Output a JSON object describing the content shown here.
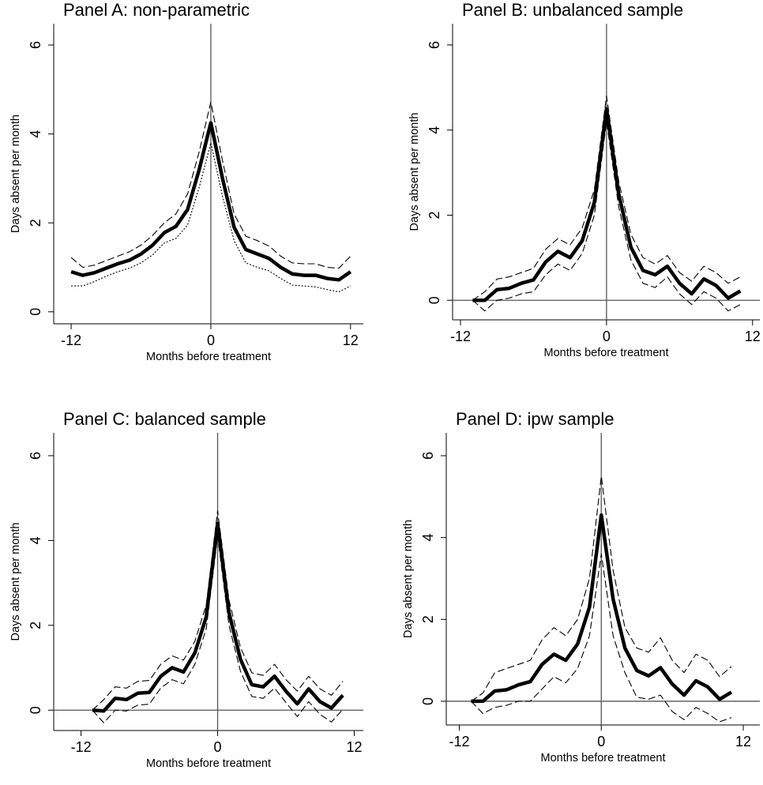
{
  "chart_data": [
    {
      "type": "line",
      "title": "Panel A: non-parametric",
      "x_label": "Months before treatment",
      "y_label": "Days absent per month",
      "x": [
        -12,
        -11,
        -10,
        -9,
        -8,
        -7,
        -6,
        -5,
        -4,
        -3,
        -2,
        -1,
        0,
        1,
        2,
        3,
        4,
        5,
        6,
        7,
        8,
        9,
        10,
        11,
        12
      ],
      "series": [
        {
          "color": "#000000",
          "style": "solid",
          "values": [
            0.9,
            0.82,
            0.88,
            0.98,
            1.08,
            1.16,
            1.3,
            1.5,
            1.78,
            1.92,
            2.3,
            3.2,
            4.25,
            3.0,
            1.9,
            1.4,
            1.3,
            1.2,
            1.0,
            0.85,
            0.82,
            0.82,
            0.75,
            0.72,
            0.9
          ]
        },
        {
          "color": "#000000",
          "style": "dashed",
          "values": [
            1.22,
            1.0,
            1.05,
            1.15,
            1.25,
            1.35,
            1.5,
            1.72,
            2.0,
            2.2,
            2.65,
            3.6,
            4.72,
            3.4,
            2.2,
            1.7,
            1.6,
            1.48,
            1.25,
            1.1,
            1.08,
            1.08,
            1.0,
            0.98,
            1.25
          ]
        },
        {
          "color": "#000000",
          "style": "dotted",
          "values": [
            0.58,
            0.58,
            0.68,
            0.8,
            0.9,
            0.98,
            1.1,
            1.28,
            1.55,
            1.65,
            1.95,
            2.8,
            3.8,
            2.6,
            1.6,
            1.1,
            1.0,
            0.92,
            0.75,
            0.6,
            0.58,
            0.56,
            0.5,
            0.45,
            0.58
          ]
        }
      ],
      "xlim": [
        -13.5,
        13.1
      ],
      "ylim": [
        -0.27,
        6.48
      ],
      "xticks": [
        -12,
        0,
        12
      ],
      "yticks": [
        0,
        2,
        4,
        6
      ],
      "zero_hline": false,
      "zero_vline": true
    },
    {
      "type": "line",
      "title": "Panel B: unbalanced sample",
      "x_label": "Months before treatment",
      "y_label": "Days absent per month",
      "x": [
        -11,
        -10,
        -9,
        -8,
        -7,
        -6,
        -5,
        -4,
        -3,
        -2,
        -1,
        0,
        1,
        2,
        3,
        4,
        5,
        6,
        7,
        8,
        9,
        10,
        11
      ],
      "series": [
        {
          "color": "#000000",
          "style": "solid",
          "values": [
            0,
            0,
            0.25,
            0.28,
            0.4,
            0.48,
            0.9,
            1.15,
            1.0,
            1.4,
            2.3,
            4.5,
            2.5,
            1.25,
            0.7,
            0.6,
            0.8,
            0.4,
            0.15,
            0.5,
            0.35,
            0.05,
            0.22
          ]
        },
        {
          "color": "#000000",
          "style": "dashed",
          "values": [
            0,
            0.2,
            0.5,
            0.55,
            0.65,
            0.75,
            1.2,
            1.45,
            1.3,
            1.7,
            2.6,
            4.8,
            2.8,
            1.55,
            1.0,
            0.85,
            1.05,
            0.65,
            0.45,
            0.8,
            0.65,
            0.4,
            0.55
          ]
        },
        {
          "color": "#000000",
          "style": "dashed",
          "values": [
            0,
            -0.25,
            0.0,
            0.05,
            0.15,
            0.2,
            0.6,
            0.85,
            0.7,
            1.1,
            2.0,
            4.2,
            2.2,
            0.95,
            0.4,
            0.3,
            0.55,
            0.15,
            -0.1,
            0.2,
            0.05,
            -0.25,
            -0.1
          ]
        }
      ],
      "xlim": [
        -12.65,
        12.6
      ],
      "ylim": [
        -0.46,
        6.5
      ],
      "xticks": [
        -12,
        0,
        12
      ],
      "yticks": [
        0,
        2,
        4,
        6
      ],
      "zero_hline": true,
      "zero_vline": true
    },
    {
      "type": "line",
      "title": "Panel C: balanced sample",
      "x_label": "Months before treatment",
      "y_label": "Days absent per month",
      "x": [
        -11,
        -10,
        -9,
        -8,
        -7,
        -6,
        -5,
        -4,
        -3,
        -2,
        -1,
        0,
        1,
        2,
        3,
        4,
        5,
        6,
        7,
        8,
        9,
        10,
        11
      ],
      "series": [
        {
          "color": "#000000",
          "style": "solid",
          "values": [
            0,
            -0.02,
            0.28,
            0.25,
            0.4,
            0.42,
            0.8,
            1.0,
            0.9,
            1.35,
            2.2,
            4.4,
            2.3,
            1.2,
            0.6,
            0.55,
            0.8,
            0.45,
            0.15,
            0.5,
            0.2,
            0.05,
            0.35
          ]
        },
        {
          "color": "#000000",
          "style": "dashed",
          "values": [
            0,
            0.25,
            0.55,
            0.52,
            0.68,
            0.7,
            1.08,
            1.28,
            1.18,
            1.62,
            2.48,
            4.7,
            2.6,
            1.48,
            0.88,
            0.82,
            1.08,
            0.72,
            0.45,
            0.8,
            0.5,
            0.35,
            0.68
          ]
        },
        {
          "color": "#000000",
          "style": "dashed",
          "values": [
            0,
            -0.3,
            0.0,
            -0.02,
            0.12,
            0.14,
            0.52,
            0.72,
            0.62,
            1.08,
            1.92,
            4.1,
            2.0,
            0.92,
            0.32,
            0.28,
            0.52,
            0.18,
            -0.15,
            0.2,
            -0.1,
            -0.28,
            0.02
          ]
        }
      ],
      "xlim": [
        -14.4,
        12.8
      ],
      "ylim": [
        -0.48,
        6.54
      ],
      "xticks": [
        -12,
        0,
        12
      ],
      "yticks": [
        0,
        2,
        4,
        6
      ],
      "zero_hline": true,
      "zero_vline": true
    },
    {
      "type": "line",
      "title": "Panel D: ipw sample",
      "x_label": "Months before treatment",
      "y_label": "Days absent per month",
      "x": [
        -11,
        -10,
        -9,
        -8,
        -7,
        -6,
        -5,
        -4,
        -3,
        -2,
        -1,
        0,
        1,
        2,
        3,
        4,
        5,
        6,
        7,
        8,
        9,
        10,
        11
      ],
      "series": [
        {
          "color": "#000000",
          "style": "solid",
          "values": [
            0,
            0,
            0.25,
            0.28,
            0.4,
            0.48,
            0.9,
            1.15,
            1.0,
            1.4,
            2.3,
            4.55,
            2.5,
            1.3,
            0.75,
            0.62,
            0.82,
            0.42,
            0.15,
            0.5,
            0.35,
            0.05,
            0.22
          ]
        },
        {
          "color": "#000000",
          "style": "dashed",
          "values": [
            0,
            0.2,
            0.7,
            0.8,
            0.9,
            1.0,
            1.5,
            1.8,
            1.6,
            2.0,
            3.0,
            5.5,
            3.2,
            1.8,
            1.3,
            1.2,
            1.55,
            1.0,
            0.7,
            1.15,
            1.0,
            0.6,
            0.85
          ]
        },
        {
          "color": "#000000",
          "style": "dashed",
          "values": [
            0,
            -0.3,
            -0.15,
            -0.1,
            0.0,
            0.0,
            0.3,
            0.6,
            0.45,
            0.8,
            1.6,
            3.6,
            1.6,
            0.7,
            0.1,
            0.05,
            0.15,
            -0.25,
            -0.45,
            -0.15,
            -0.3,
            -0.5,
            -0.4
          ]
        }
      ],
      "xlim": [
        -13.1,
        13.4
      ],
      "ylim": [
        -0.58,
        6.56
      ],
      "xticks": [
        -12,
        0,
        12
      ],
      "yticks": [
        0,
        2,
        4,
        6
      ],
      "zero_hline": true,
      "zero_vline": true
    }
  ]
}
